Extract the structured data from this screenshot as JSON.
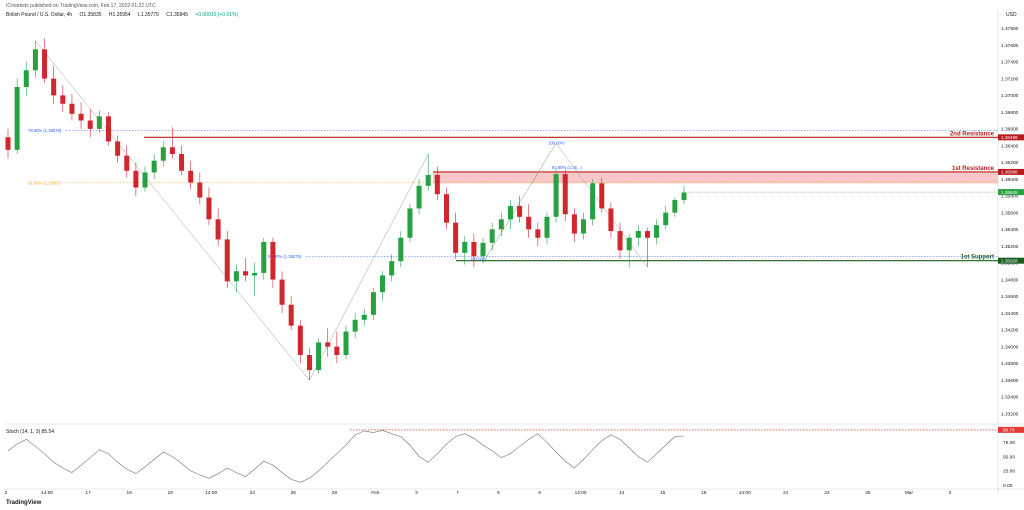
{
  "header": {
    "published": "ICmarkets published on TradingView.com, Feb 17, 2022 01:22 UTC",
    "symbol": "British Pound / U.S. Dollar, 4h",
    "open": "O1.35835",
    "high": "H1.35954",
    "low": "L1.35779",
    "close": "C1.35845",
    "change": "+0.00010 (+0.01%)"
  },
  "currency_label": "USD",
  "footer_brand": "TradingView",
  "colors": {
    "bull": "#26a041",
    "bear": "#d0262e",
    "resistance": "#b71c1c",
    "support": "#1b5e20",
    "zone": "#f5b5b5",
    "fib_blue": "#2962ff",
    "fib_orange": "#f5a623",
    "stoch": "#707070",
    "ob_line": "#e53935"
  },
  "chart_data": [
    {
      "type": "candlestick",
      "title": "",
      "y_axis_ticks": [
        "1.37800",
        "1.37600",
        "1.37400",
        "1.37200",
        "1.37000",
        "1.36800",
        "1.36600",
        "1.36400",
        "1.36200",
        "1.36000",
        "1.35800",
        "1.35600",
        "1.35400",
        "1.35200",
        "1.35000",
        "1.34800",
        "1.34600",
        "1.34400",
        "1.34200",
        "1.34000",
        "1.33800",
        "1.33600",
        "1.33400",
        "1.33200"
      ],
      "ylim": [
        1.331,
        1.379
      ],
      "x_axis_ticks": [
        "2",
        "14:00",
        "17",
        "18",
        "19",
        "14:00",
        "24",
        "26",
        "28",
        "Feb",
        "3",
        "7",
        "8",
        "9",
        "14:00",
        "14",
        "15",
        "16",
        "14:00",
        "21",
        "23",
        "25",
        "Mar",
        "3"
      ],
      "last_price": "1.35845",
      "levels": [
        {
          "label": "2nd Resistance",
          "value": 1.36499,
          "value_label": "1.36499"
        },
        {
          "label": "1st Resistance",
          "value": 1.36086,
          "value_label": "1.36086"
        },
        {
          "label": "1st Support",
          "value": 1.35026,
          "value_label": "1.35026"
        }
      ],
      "zone": {
        "top": 1.36086,
        "bottom": 1.3595
      },
      "fib_annotations": [
        {
          "label": "78.60% (1.36579)",
          "value": 1.36579
        },
        {
          "label": "61.80% (1.35957)",
          "value": 1.35957
        },
        {
          "label": "50.00% (1.35075)",
          "value": 1.35075
        },
        {
          "label": "100.00%",
          "value": 1.3643
        },
        {
          "label": "100.00%",
          "value": 1.3505
        },
        {
          "label": "61.80% (1.36...)",
          "value": 1.3614
        }
      ],
      "candles": [
        [
          1.365,
          1.366,
          1.3625,
          1.3635
        ],
        [
          1.3635,
          1.372,
          1.363,
          1.371
        ],
        [
          1.371,
          1.374,
          1.37,
          1.373
        ],
        [
          1.373,
          1.3765,
          1.3722,
          1.3755
        ],
        [
          1.3755,
          1.3768,
          1.3715,
          1.372
        ],
        [
          1.372,
          1.3735,
          1.369,
          1.37
        ],
        [
          1.37,
          1.3712,
          1.368,
          1.369
        ],
        [
          1.369,
          1.3702,
          1.367,
          1.3678
        ],
        [
          1.3678,
          1.3692,
          1.366,
          1.367
        ],
        [
          1.367,
          1.3684,
          1.365,
          1.366
        ],
        [
          1.366,
          1.3682,
          1.3655,
          1.3675
        ],
        [
          1.3675,
          1.368,
          1.364,
          1.3645
        ],
        [
          1.3645,
          1.3652,
          1.362,
          1.3628
        ],
        [
          1.3628,
          1.364,
          1.3602,
          1.361
        ],
        [
          1.361,
          1.362,
          1.358,
          1.359
        ],
        [
          1.359,
          1.3615,
          1.3585,
          1.3608
        ],
        [
          1.3608,
          1.363,
          1.36,
          1.3622
        ],
        [
          1.3622,
          1.3645,
          1.3615,
          1.3638
        ],
        [
          1.3638,
          1.3662,
          1.3625,
          1.363
        ],
        [
          1.363,
          1.364,
          1.3605,
          1.361
        ],
        [
          1.361,
          1.3622,
          1.3588,
          1.3596
        ],
        [
          1.3596,
          1.3608,
          1.357,
          1.3578
        ],
        [
          1.3578,
          1.359,
          1.3545,
          1.3552
        ],
        [
          1.3552,
          1.3565,
          1.352,
          1.3528
        ],
        [
          1.3528,
          1.3538,
          1.347,
          1.3478
        ],
        [
          1.3478,
          1.3498,
          1.3465,
          1.349
        ],
        [
          1.349,
          1.3506,
          1.3478,
          1.3485
        ],
        [
          1.3485,
          1.35,
          1.346,
          1.3488
        ],
        [
          1.3488,
          1.353,
          1.348,
          1.3525
        ],
        [
          1.3525,
          1.353,
          1.347,
          1.348
        ],
        [
          1.348,
          1.349,
          1.344,
          1.345
        ],
        [
          1.345,
          1.346,
          1.342,
          1.3425
        ],
        [
          1.3425,
          1.3432,
          1.338,
          1.339
        ],
        [
          1.339,
          1.3398,
          1.336,
          1.3372
        ],
        [
          1.3372,
          1.341,
          1.3368,
          1.3405
        ],
        [
          1.3405,
          1.3422,
          1.3388,
          1.34
        ],
        [
          1.34,
          1.3418,
          1.338,
          1.339
        ],
        [
          1.339,
          1.3425,
          1.3385,
          1.3418
        ],
        [
          1.3418,
          1.344,
          1.341,
          1.3432
        ],
        [
          1.3432,
          1.3445,
          1.3425,
          1.3438
        ],
        [
          1.3438,
          1.347,
          1.3432,
          1.3465
        ],
        [
          1.3465,
          1.349,
          1.3455,
          1.3485
        ],
        [
          1.3485,
          1.351,
          1.3478,
          1.3502
        ],
        [
          1.3502,
          1.3538,
          1.3495,
          1.353
        ],
        [
          1.353,
          1.357,
          1.3525,
          1.3565
        ],
        [
          1.3565,
          1.36,
          1.3558,
          1.3592
        ],
        [
          1.3592,
          1.363,
          1.3586,
          1.3605
        ],
        [
          1.3605,
          1.3615,
          1.3575,
          1.3582
        ],
        [
          1.3582,
          1.359,
          1.354,
          1.3548
        ],
        [
          1.3548,
          1.356,
          1.3505,
          1.3512
        ],
        [
          1.3512,
          1.3532,
          1.3498,
          1.3525
        ],
        [
          1.3525,
          1.3535,
          1.3495,
          1.3508
        ],
        [
          1.3508,
          1.353,
          1.35,
          1.3524
        ],
        [
          1.3524,
          1.3548,
          1.3515,
          1.354
        ],
        [
          1.354,
          1.356,
          1.3532,
          1.3552
        ],
        [
          1.3552,
          1.3575,
          1.354,
          1.3568
        ],
        [
          1.3568,
          1.358,
          1.3548,
          1.3555
        ],
        [
          1.3555,
          1.357,
          1.353,
          1.354
        ],
        [
          1.354,
          1.3548,
          1.352,
          1.353
        ],
        [
          1.353,
          1.356,
          1.3522,
          1.3555
        ],
        [
          1.3555,
          1.3612,
          1.3548,
          1.3606
        ],
        [
          1.3606,
          1.3612,
          1.355,
          1.3558
        ],
        [
          1.3558,
          1.3565,
          1.3525,
          1.3535
        ],
        [
          1.3535,
          1.356,
          1.3528,
          1.3552
        ],
        [
          1.3552,
          1.36,
          1.3545,
          1.3595
        ],
        [
          1.3595,
          1.3602,
          1.356,
          1.3565
        ],
        [
          1.3565,
          1.3572,
          1.353,
          1.3538
        ],
        [
          1.3538,
          1.3548,
          1.3505,
          1.3515
        ],
        [
          1.3515,
          1.3535,
          1.3495,
          1.353
        ],
        [
          1.353,
          1.3545,
          1.352,
          1.3538
        ],
        [
          1.3538,
          1.3542,
          1.3495,
          1.353
        ],
        [
          1.353,
          1.3552,
          1.3522,
          1.3545
        ],
        [
          1.3545,
          1.3568,
          1.354,
          1.356
        ],
        [
          1.356,
          1.3578,
          1.3555,
          1.3575
        ],
        [
          1.3575,
          1.3592,
          1.357,
          1.3584
        ]
      ]
    },
    {
      "type": "line",
      "title": "Stoch (14, 1, 3)",
      "value_label": "85.54",
      "overbought_label": "96.70",
      "y_axis_ticks": [
        "75.00",
        "50.00",
        "25.00",
        "0.00"
      ],
      "ylim": [
        -5,
        100
      ],
      "values": [
        60,
        72,
        80,
        68,
        55,
        40,
        30,
        22,
        35,
        48,
        62,
        55,
        40,
        28,
        20,
        32,
        45,
        58,
        50,
        38,
        25,
        18,
        12,
        20,
        30,
        22,
        15,
        28,
        42,
        35,
        22,
        10,
        5,
        12,
        25,
        40,
        55,
        70,
        88,
        95,
        92,
        96,
        90,
        85,
        70,
        50,
        40,
        55,
        72,
        85,
        90,
        82,
        70,
        60,
        48,
        55,
        68,
        80,
        90,
        75,
        58,
        42,
        30,
        45,
        62,
        78,
        88,
        80,
        65,
        50,
        40,
        55,
        70,
        85,
        86
      ]
    }
  ]
}
